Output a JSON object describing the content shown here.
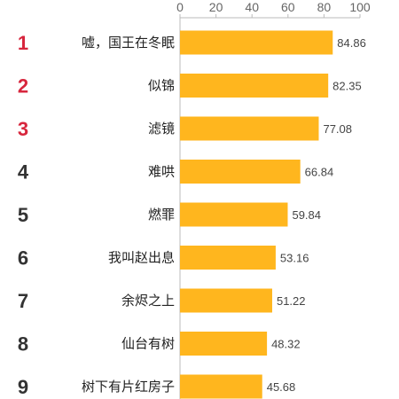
{
  "chart_data": {
    "type": "bar",
    "orientation": "horizontal",
    "ranks": [
      "1",
      "2",
      "3",
      "4",
      "5",
      "6",
      "7",
      "8",
      "9"
    ],
    "categories": [
      "嘘，国王在冬眠",
      "似锦",
      "滤镜",
      "难哄",
      "燃罪",
      "我叫赵出息",
      "余烬之上",
      "仙台有树",
      "树下有片红房子"
    ],
    "values": [
      84.86,
      82.35,
      77.08,
      66.84,
      59.84,
      53.16,
      51.22,
      48.32,
      45.68
    ],
    "value_labels": [
      "84.86",
      "82.35",
      "77.08",
      "66.84",
      "59.84",
      "53.16",
      "51.22",
      "48.32",
      "45.68"
    ],
    "xticks": [
      0,
      20,
      40,
      60,
      80,
      100
    ],
    "xlim": [
      0,
      100
    ],
    "axis_position": "top",
    "grid": false,
    "bar_color": "#FFB61E",
    "axis_color": "#BBBBBB",
    "top_rank_color": "#D7263D",
    "rank_color": "#333333",
    "highlighted_top_ranks": 3
  }
}
